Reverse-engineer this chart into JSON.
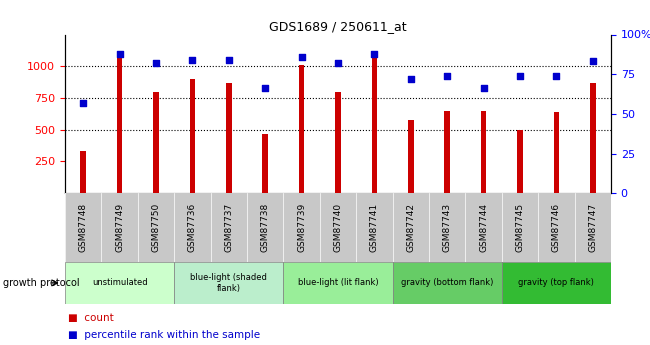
{
  "title": "GDS1689 / 250611_at",
  "samples": [
    "GSM87748",
    "GSM87749",
    "GSM87750",
    "GSM87736",
    "GSM87737",
    "GSM87738",
    "GSM87739",
    "GSM87740",
    "GSM87741",
    "GSM87742",
    "GSM87743",
    "GSM87744",
    "GSM87745",
    "GSM87746",
    "GSM87747"
  ],
  "counts": [
    330,
    1100,
    800,
    900,
    870,
    470,
    1010,
    800,
    1120,
    580,
    650,
    650,
    500,
    640,
    870
  ],
  "percentiles": [
    57,
    88,
    82,
    84,
    84,
    66,
    86,
    82,
    88,
    72,
    74,
    66,
    74,
    74,
    83
  ],
  "bar_color": "#cc0000",
  "dot_color": "#0000cc",
  "ylim_left": [
    0,
    1250
  ],
  "ylim_right": [
    0,
    100
  ],
  "yticks_left": [
    250,
    500,
    750,
    1000
  ],
  "yticks_right": [
    0,
    25,
    50,
    75,
    100
  ],
  "groups": [
    {
      "label": "unstimulated",
      "start": 0,
      "end": 3,
      "color": "#ccffcc"
    },
    {
      "label": "blue-light (shaded\nflank)",
      "start": 3,
      "end": 6,
      "color": "#bbeecc"
    },
    {
      "label": "blue-light (lit flank)",
      "start": 6,
      "end": 9,
      "color": "#99ee99"
    },
    {
      "label": "gravity (bottom flank)",
      "start": 9,
      "end": 12,
      "color": "#66cc66"
    },
    {
      "label": "gravity (top flank)",
      "start": 12,
      "end": 15,
      "color": "#33bb33"
    }
  ],
  "legend_count_label": "count",
  "legend_pct_label": "percentile rank within the sample",
  "growth_protocol_label": "growth protocol",
  "dotgrid_lines": [
    500,
    750,
    1000
  ],
  "bar_width": 0.15,
  "sample_bg_color": "#c8c8c8",
  "plot_bg_color": "#ffffff"
}
